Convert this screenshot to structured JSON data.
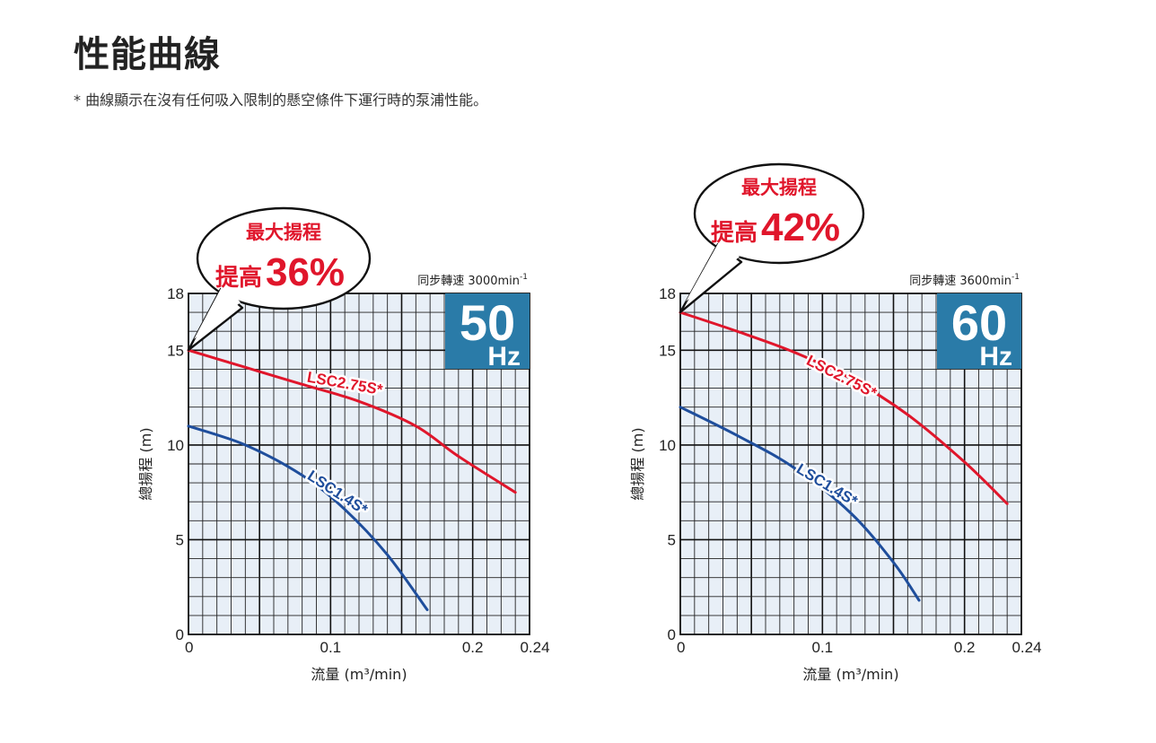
{
  "page": {
    "title": "性能曲線",
    "note": "* 曲線顯示在沒有任何吸入限制的懸空條件下運行時的泵浦性能。"
  },
  "colors": {
    "red_curve": "#e0162b",
    "blue_curve": "#1f4e9c",
    "grid_bg": "#e8eff7",
    "hz_box": "#2a7ba8"
  },
  "chart_data": [
    {
      "type": "line",
      "title": "",
      "xlabel": "流量 (m³/min)",
      "ylabel": "總揚程 (m)",
      "xlim": [
        0,
        0.24
      ],
      "ylim": [
        0,
        18
      ],
      "x_ticks": [
        0,
        0.1,
        0.2,
        0.24
      ],
      "y_ticks": [
        0,
        5,
        10,
        15,
        18
      ],
      "x_tick_labels": [
        "0",
        "0.1",
        "0.2",
        "0.24"
      ],
      "y_tick_labels": [
        "0",
        "5",
        "10",
        "15",
        "18"
      ],
      "grid": true,
      "speed_label": "同步轉速 3000min",
      "speed_sup": "-1",
      "hz_value": "50",
      "hz_unit": "Hz",
      "callout": {
        "line1": "最大揚程",
        "line2a": "提高",
        "line2b": "36%"
      },
      "series": [
        {
          "name": "LSC2.75S*",
          "color": "#e0162b",
          "x": [
            0,
            0.04,
            0.08,
            0.12,
            0.16,
            0.19,
            0.23
          ],
          "y": [
            15,
            14.1,
            13.2,
            12.3,
            11.0,
            9.4,
            7.5
          ]
        },
        {
          "name": "LSC1.4S*",
          "color": "#1f4e9c",
          "x": [
            0,
            0.04,
            0.08,
            0.11,
            0.14,
            0.168
          ],
          "y": [
            11,
            10,
            8.4,
            6.6,
            4.2,
            1.3
          ]
        }
      ]
    },
    {
      "type": "line",
      "title": "",
      "xlabel": "流量 (m³/min)",
      "ylabel": "總揚程 (m)",
      "xlim": [
        0,
        0.24
      ],
      "ylim": [
        0,
        18
      ],
      "x_ticks": [
        0,
        0.1,
        0.2,
        0.24
      ],
      "y_ticks": [
        0,
        5,
        10,
        15,
        18
      ],
      "x_tick_labels": [
        "0",
        "0.1",
        "0.2",
        "0.24"
      ],
      "y_tick_labels": [
        "0",
        "5",
        "10",
        "15",
        "18"
      ],
      "grid": true,
      "speed_label": "同步轉速 3600min",
      "speed_sup": "-1",
      "hz_value": "60",
      "hz_unit": "Hz",
      "callout": {
        "line1": "最大揚程",
        "line2a": "提高",
        "line2b": "42%"
      },
      "series": [
        {
          "name": "LSC2.75S*",
          "color": "#e0162b",
          "x": [
            0,
            0.04,
            0.08,
            0.12,
            0.16,
            0.2,
            0.23
          ],
          "y": [
            17,
            16,
            14.9,
            13.5,
            11.6,
            9.1,
            6.9
          ]
        },
        {
          "name": "LSC1.4S*",
          "color": "#1f4e9c",
          "x": [
            0,
            0.04,
            0.08,
            0.12,
            0.15,
            0.168
          ],
          "y": [
            12,
            10.5,
            8.8,
            6.4,
            3.8,
            1.8
          ]
        }
      ]
    }
  ]
}
